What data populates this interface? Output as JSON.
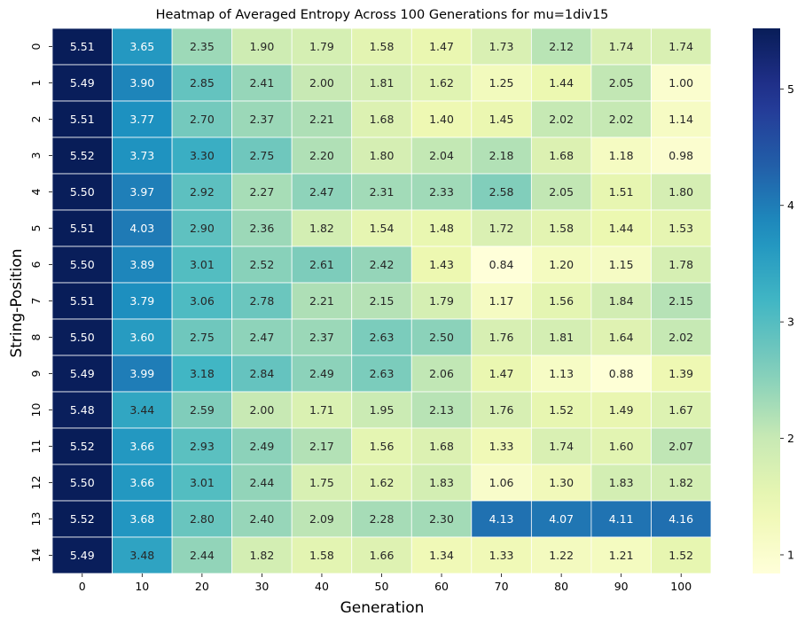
{
  "chart_data": {
    "type": "heatmap",
    "title": "Heatmap of Averaged Entropy Across 100 Generations for mu=1div15",
    "xlabel": "Generation",
    "ylabel": "String-Position",
    "x_categories": [
      "0",
      "10",
      "20",
      "30",
      "40",
      "50",
      "60",
      "70",
      "80",
      "90",
      "100"
    ],
    "y_categories": [
      "0",
      "1",
      "2",
      "3",
      "4",
      "5",
      "6",
      "7",
      "8",
      "9",
      "10",
      "11",
      "12",
      "13",
      "14"
    ],
    "values": [
      [
        5.51,
        3.65,
        2.35,
        1.9,
        1.79,
        1.58,
        1.47,
        1.73,
        2.12,
        1.74,
        1.74
      ],
      [
        5.49,
        3.9,
        2.85,
        2.41,
        2.0,
        1.81,
        1.62,
        1.25,
        1.44,
        2.05,
        1.0
      ],
      [
        5.51,
        3.77,
        2.7,
        2.37,
        2.21,
        1.68,
        1.4,
        1.45,
        2.02,
        2.02,
        1.14
      ],
      [
        5.52,
        3.73,
        3.3,
        2.75,
        2.2,
        1.8,
        2.04,
        2.18,
        1.68,
        1.18,
        0.98
      ],
      [
        5.5,
        3.97,
        2.92,
        2.27,
        2.47,
        2.31,
        2.33,
        2.58,
        2.05,
        1.51,
        1.8
      ],
      [
        5.51,
        4.03,
        2.9,
        2.36,
        1.82,
        1.54,
        1.48,
        1.72,
        1.58,
        1.44,
        1.53
      ],
      [
        5.5,
        3.89,
        3.01,
        2.52,
        2.61,
        2.42,
        1.43,
        0.84,
        1.2,
        1.15,
        1.78
      ],
      [
        5.51,
        3.79,
        3.06,
        2.78,
        2.21,
        2.15,
        1.79,
        1.17,
        1.56,
        1.84,
        2.15
      ],
      [
        5.5,
        3.6,
        2.75,
        2.47,
        2.37,
        2.63,
        2.5,
        1.76,
        1.81,
        1.64,
        2.02
      ],
      [
        5.49,
        3.99,
        3.18,
        2.84,
        2.49,
        2.63,
        2.06,
        1.47,
        1.13,
        0.88,
        1.39
      ],
      [
        5.48,
        3.44,
        2.59,
        2.0,
        1.71,
        1.95,
        2.13,
        1.76,
        1.52,
        1.49,
        1.67
      ],
      [
        5.52,
        3.66,
        2.93,
        2.49,
        2.17,
        1.56,
        1.68,
        1.33,
        1.74,
        1.6,
        2.07
      ],
      [
        5.5,
        3.66,
        3.01,
        2.44,
        1.75,
        1.62,
        1.83,
        1.06,
        1.3,
        1.83,
        1.82
      ],
      [
        5.52,
        3.68,
        2.8,
        2.4,
        2.09,
        2.28,
        2.3,
        4.13,
        4.07,
        4.11,
        4.16
      ],
      [
        5.49,
        3.48,
        2.44,
        1.82,
        1.58,
        1.66,
        1.34,
        1.33,
        1.22,
        1.21,
        1.52
      ]
    ],
    "colormap": "YlGnBu",
    "value_range": [
      0.84,
      5.52
    ],
    "colorbar_ticks": [
      "1",
      "2",
      "3",
      "4",
      "5"
    ],
    "annotations": true,
    "grid": false,
    "colorbar_position": "right"
  }
}
